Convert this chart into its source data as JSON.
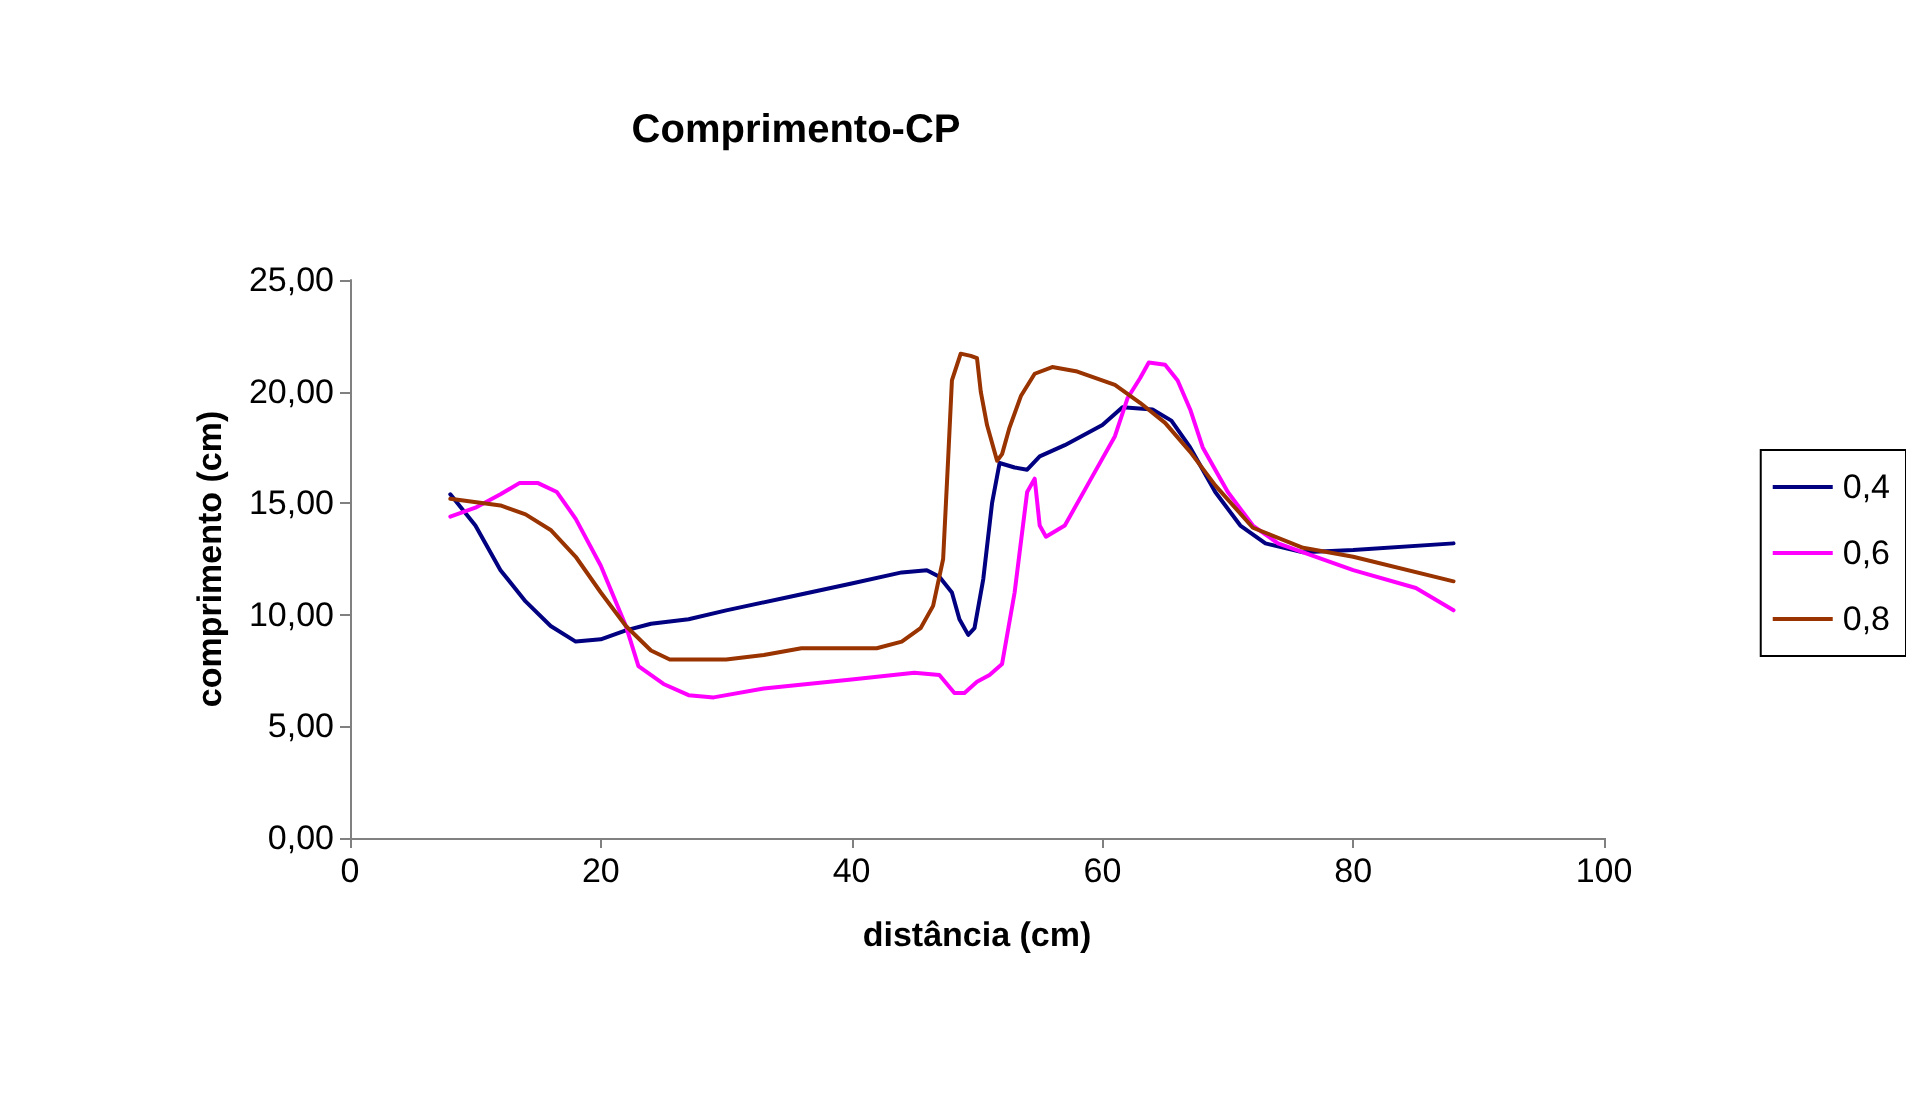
{
  "chart_data": {
    "type": "line",
    "title": "Comprimento-CP",
    "xlabel": "distância (cm)",
    "ylabel": "comprimento (cm)",
    "xlim": [
      0,
      100
    ],
    "xticks": [
      0,
      20,
      40,
      60,
      80,
      100
    ],
    "ylim": [
      0,
      25
    ],
    "yticks": [
      {
        "value": 0,
        "label": "0,00"
      },
      {
        "value": 5,
        "label": "5,00"
      },
      {
        "value": 10,
        "label": "10,00"
      },
      {
        "value": 15,
        "label": "15,00"
      },
      {
        "value": 20,
        "label": "20,00"
      },
      {
        "value": 25,
        "label": "25,00"
      }
    ],
    "grid": false,
    "legend": "right",
    "marker": "none",
    "line_style": "solid",
    "series": [
      {
        "name": "0,4",
        "color": "#000080",
        "x": [
          8,
          10,
          12,
          14,
          16,
          18,
          20,
          22,
          24,
          27,
          30,
          35,
          40,
          44,
          46,
          47,
          48,
          48.6,
          49.3,
          49.8,
          50.5,
          51.2,
          51.8,
          53,
          54,
          55,
          57,
          60,
          61.6,
          64,
          65.5,
          67,
          69,
          71,
          73,
          76,
          80,
          88
        ],
        "values": [
          15.4,
          14,
          12,
          10.6,
          9.5,
          8.8,
          8.9,
          9.3,
          9.6,
          9.8,
          10.2,
          10.8,
          11.4,
          11.9,
          12,
          11.7,
          11,
          9.8,
          9.1,
          9.4,
          11.6,
          15,
          16.8,
          16.6,
          16.5,
          17.1,
          17.6,
          18.5,
          19.3,
          19.2,
          18.7,
          17.5,
          15.5,
          14,
          13.2,
          12.8,
          12.9,
          13.2
        ]
      },
      {
        "name": "0,6",
        "color": "#ff00ff",
        "x": [
          8,
          10,
          12,
          13.5,
          15,
          16.5,
          18,
          20,
          22,
          23,
          25,
          27,
          29,
          33,
          40,
          45,
          47,
          48.2,
          49,
          50,
          51,
          52,
          53,
          54,
          54.6,
          55,
          55.5,
          57,
          59,
          61,
          62,
          63,
          63.7,
          65,
          66,
          67,
          68,
          70,
          72,
          74,
          80,
          85,
          88
        ],
        "values": [
          14.4,
          14.8,
          15.4,
          15.9,
          15.9,
          15.5,
          14.3,
          12.2,
          9.5,
          7.7,
          6.9,
          6.4,
          6.3,
          6.7,
          7.1,
          7.4,
          7.3,
          6.5,
          6.5,
          7,
          7.3,
          7.8,
          11,
          15.5,
          16.1,
          14,
          13.5,
          14,
          16,
          18,
          19.7,
          20.6,
          21.3,
          21.2,
          20.5,
          19.2,
          17.5,
          15.5,
          14,
          13.2,
          12,
          11.2,
          10.2
        ]
      },
      {
        "name": "0,8",
        "color": "#993300",
        "x": [
          8,
          12,
          14,
          16,
          18,
          20,
          22,
          24,
          25.5,
          30,
          33,
          36,
          42,
          44,
          45.5,
          46.5,
          47.3,
          47.7,
          48,
          48.7,
          49.5,
          50,
          50.3,
          50.8,
          51.6,
          52,
          52.6,
          53.5,
          54.6,
          56,
          58,
          61,
          63,
          65,
          67,
          69,
          72,
          76,
          80,
          88
        ],
        "values": [
          15.2,
          14.9,
          14.5,
          13.8,
          12.6,
          11,
          9.5,
          8.4,
          8,
          8,
          8.2,
          8.5,
          8.5,
          8.8,
          9.4,
          10.4,
          12.5,
          17,
          20.5,
          21.7,
          21.6,
          21.5,
          20,
          18.5,
          16.9,
          17.2,
          18.4,
          19.8,
          20.8,
          21.1,
          20.9,
          20.3,
          19.5,
          18.6,
          17.3,
          15.8,
          13.9,
          13,
          12.6,
          11.5
        ]
      }
    ]
  }
}
